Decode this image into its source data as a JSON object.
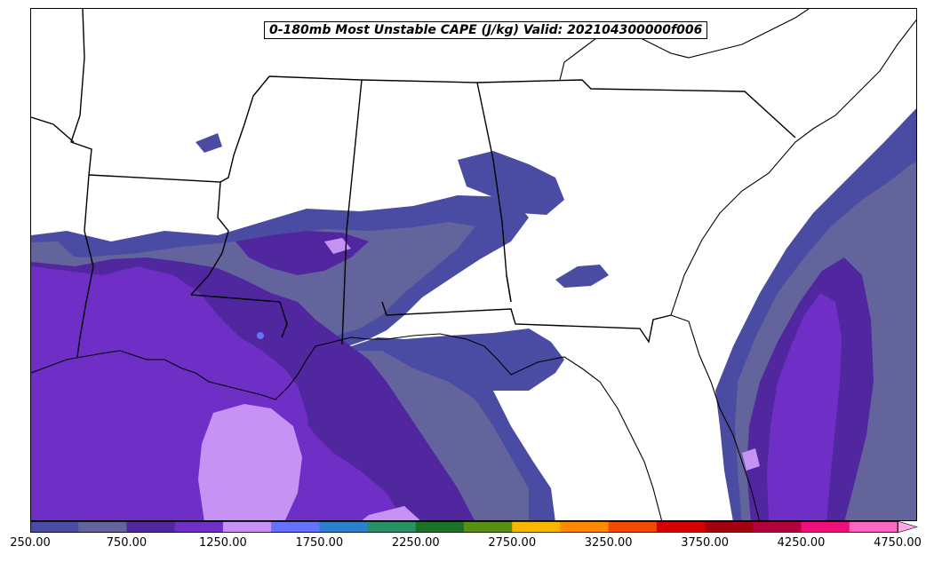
{
  "title": "0-180mb Most Unstable CAPE (J/kg) Valid: 202104300000f006",
  "colorbar": {
    "levels": [
      250,
      500,
      750,
      1000,
      1250,
      1500,
      1750,
      2000,
      2250,
      2500,
      2750,
      3000,
      3250,
      3500,
      3750,
      4000,
      4250,
      4500,
      4750
    ],
    "colors": [
      "#4a4ba3",
      "#64649c",
      "#5127a0",
      "#6f2fc7",
      "#c693f5",
      "#6672fb",
      "#2f7fcf",
      "#2a8f64",
      "#1d7027",
      "#5a8f16",
      "#f7b600",
      "#ff8a00",
      "#f24b00",
      "#d60000",
      "#a30010",
      "#b5003e",
      "#ef0f7b",
      "#ff66c4"
    ],
    "extend_color": "#ffa6ea",
    "tick_labels": [
      "250.00",
      "750.00",
      "1250.00",
      "1750.00",
      "2250.00",
      "2750.00",
      "3250.00",
      "3750.00",
      "4250.00",
      "4750.00"
    ]
  },
  "colors": {
    "cape_250": "#4a4ba3",
    "cape_500": "#64649c",
    "cape_750": "#5127a0",
    "cape_1000": "#6f2fc7",
    "cape_1250": "#c693f5",
    "cape_1500": "#6672fb",
    "boundaries": "#000000",
    "land_sea_background": "#ffffff"
  }
}
